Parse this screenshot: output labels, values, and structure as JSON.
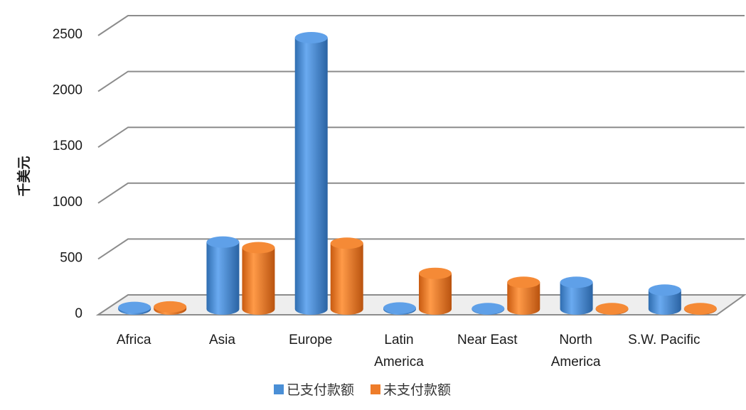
{
  "chart_data": {
    "type": "bar",
    "style": "3d-cylinder",
    "categories": [
      "Africa",
      "Asia",
      "Europe",
      "Latin\nAmerica",
      "Near East",
      "North\nAmerica",
      "S.W. Pacific"
    ],
    "series": [
      {
        "name": "已支付款额",
        "color": "#4a8fd6",
        "values": [
          15,
          600,
          2430,
          10,
          5,
          240,
          170
        ]
      },
      {
        "name": "未支付款额",
        "color": "#ee7c2a",
        "values": [
          20,
          550,
          590,
          320,
          240,
          5,
          5
        ]
      }
    ],
    "ylabel": "千美元",
    "ylim": [
      0,
      2500
    ],
    "yticks": [
      0,
      500,
      1000,
      1500,
      2000,
      2500
    ],
    "grid": true,
    "legend_position": "bottom"
  }
}
